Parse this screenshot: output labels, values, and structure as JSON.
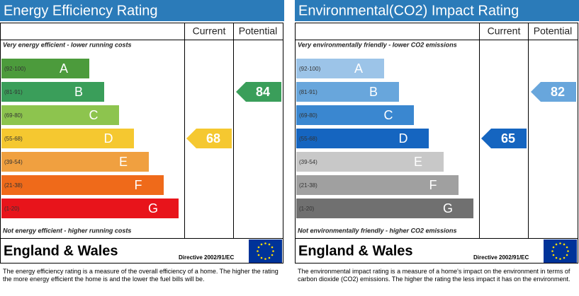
{
  "panels": [
    {
      "title": "Energy Efficiency Rating",
      "columns": [
        "Current",
        "Potential"
      ],
      "top_note": "Very energy efficient - lower running costs",
      "bands": [
        {
          "range": "(92-100)",
          "letter": "A",
          "color": "#4c9b3c"
        },
        {
          "range": "(81-91)",
          "letter": "B",
          "color": "#3a9e5a"
        },
        {
          "range": "(69-80)",
          "letter": "C",
          "color": "#8dc44e"
        },
        {
          "range": "(55-68)",
          "letter": "D",
          "color": "#f5c830"
        },
        {
          "range": "(39-54)",
          "letter": "E",
          "color": "#f0a040"
        },
        {
          "range": "(21-38)",
          "letter": "F",
          "color": "#ef6a1a"
        },
        {
          "range": "(1-20)",
          "letter": "G",
          "color": "#e8141b"
        }
      ],
      "bottom_note": "Not energy efficient - higher running costs",
      "current": 68,
      "potential": 84,
      "region": "England & Wales",
      "directive": "Directive 2002/91/EC",
      "description": "The energy efficiency rating is a measure of the overall efficiency of a home. The higher the rating the more energy efficient the home is and the lower the fuel bills will be."
    },
    {
      "title": "Environmental(CO2) Impact Rating",
      "columns": [
        "Current",
        "Potential"
      ],
      "top_note": "Very environmentally friendly - lower CO2 emissions",
      "bands": [
        {
          "range": "(92-100)",
          "letter": "A",
          "color": "#9cc4e8"
        },
        {
          "range": "(81-91)",
          "letter": "B",
          "color": "#68a6dc"
        },
        {
          "range": "(69-80)",
          "letter": "C",
          "color": "#3a87d0"
        },
        {
          "range": "(55-68)",
          "letter": "D",
          "color": "#1565c0"
        },
        {
          "range": "(39-54)",
          "letter": "E",
          "color": "#c8c8c8"
        },
        {
          "range": "(21-38)",
          "letter": "F",
          "color": "#a0a0a0"
        },
        {
          "range": "(1-20)",
          "letter": "G",
          "color": "#707070"
        }
      ],
      "bottom_note": "Not environmentally friendly - higher CO2 emissions",
      "current": 65,
      "potential": 82,
      "region": "England & Wales",
      "directive": "Directive 2002/91/EC",
      "description": "The environmental impact rating is a measure of a home's impact on the environment in terms of carbon dioxide (CO2) emissions. The higher the rating the less impact it has on the environment."
    }
  ]
}
